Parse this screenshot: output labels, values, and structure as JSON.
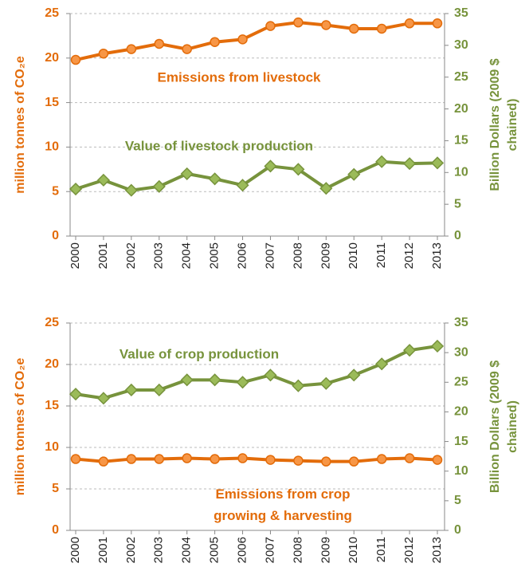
{
  "chart_data": [
    {
      "type": "line",
      "categories": [
        "2000",
        "2001",
        "2002",
        "2003",
        "2004",
        "2005",
        "2006",
        "2007",
        "2008",
        "2009",
        "2010",
        "2011",
        "2012",
        "2013"
      ],
      "ylabel": "million tonnes of CO₂e",
      "y2label": [
        "Billion Dollars (2009 $",
        "chained)"
      ],
      "ylim": [
        0,
        25
      ],
      "yticks": [
        0,
        5,
        10,
        15,
        20,
        25
      ],
      "y2lim": [
        0,
        35
      ],
      "y2ticks": [
        0,
        5,
        10,
        15,
        20,
        25,
        30,
        35
      ],
      "grid": true,
      "series": [
        {
          "name": "Emissions from livestock",
          "color": "#e36c0a",
          "marker": "circle",
          "values": [
            19.8,
            20.5,
            21.0,
            21.6,
            21.0,
            21.8,
            22.1,
            23.6,
            24.0,
            23.7,
            23.3,
            23.3,
            23.9,
            23.9
          ]
        },
        {
          "name": "Value of livestock production",
          "color": "#77933c",
          "marker": "diamond",
          "axis": "y2",
          "values": [
            7.4,
            8.8,
            7.2,
            7.8,
            9.8,
            9.0,
            8.0,
            11.0,
            10.5,
            7.5,
            9.7,
            11.7,
            11.4,
            11.5
          ]
        }
      ]
    },
    {
      "type": "line",
      "categories": [
        "2000",
        "2001",
        "2002",
        "2003",
        "2004",
        "2005",
        "2006",
        "2007",
        "2008",
        "2009",
        "2010",
        "2011",
        "2012",
        "2013"
      ],
      "ylabel": "million tonnes of CO₂e",
      "y2label": [
        "Billion Dollars (2009 $",
        "chained)"
      ],
      "ylim": [
        0,
        25
      ],
      "yticks": [
        0,
        5,
        10,
        15,
        20,
        25
      ],
      "y2lim": [
        0,
        35
      ],
      "y2ticks": [
        0,
        5,
        10,
        15,
        20,
        25,
        30,
        35
      ],
      "grid": true,
      "series": [
        {
          "name": "Emissions from crop growing & harvesting",
          "color": "#e36c0a",
          "marker": "circle",
          "values": [
            8.6,
            8.3,
            8.6,
            8.6,
            8.7,
            8.6,
            8.7,
            8.5,
            8.4,
            8.3,
            8.3,
            8.6,
            8.7,
            8.5
          ]
        },
        {
          "name": "Value of crop production",
          "color": "#77933c",
          "marker": "diamond",
          "axis": "y2",
          "values": [
            23.0,
            22.3,
            23.7,
            23.7,
            25.4,
            25.4,
            25.0,
            26.2,
            24.4,
            24.8,
            26.2,
            28.1,
            30.4,
            31.1
          ]
        }
      ]
    }
  ]
}
